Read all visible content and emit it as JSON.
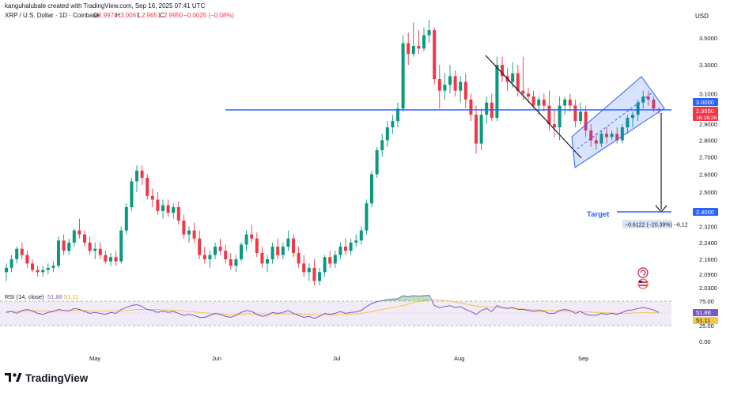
{
  "header": {
    "author_line": "kanguhalubale created with TradingView.com, Sep 16, 2025 07:41 UTC",
    "symbol": "XRP / U.S. Dollar · 1D · Coinbase",
    "o_label": "O",
    "o_value": "2.9974",
    "h_label": "H",
    "h_value": "3.0067",
    "l_label": "L",
    "l_value": "2.9651",
    "c_label": "C",
    "c_value": "2.9950",
    "change": "−0.0025 (−0.08%)"
  },
  "currency": "USD",
  "price_axis": {
    "ticks": [
      "3.5000",
      "3.3000",
      "3.1000",
      "2.9000",
      "2.8000",
      "2.7000",
      "2.6000",
      "2.5000",
      "2.3200",
      "2.2400",
      "2.1600",
      "2.0900",
      "2.0300"
    ],
    "labels": {
      "level": "3.0000",
      "last": "2.9950",
      "countdown": "16:18:26",
      "target": "2.4000"
    }
  },
  "rsi_axis": {
    "ticks": [
      "75.00",
      "25.00",
      "0.00"
    ],
    "rsi_value": "51.88",
    "ma_value": "51.11"
  },
  "rsi_legend": {
    "name": "RSI (14, close)",
    "v1": "51.88",
    "v2": "51.11"
  },
  "time_axis": [
    "May",
    "Jun",
    "Jul",
    "Aug",
    "Sep"
  ],
  "annotations": {
    "target_label": "Target",
    "measure_label": "−0.6122 (−20.39%) −6,12"
  },
  "brand": "TradingView",
  "colors": {
    "up": "#089981",
    "down": "#f23645",
    "level": "#2962ff",
    "channel": "#2962ff",
    "rsi": "#7e57c2",
    "rsi_ma": "#f7c548",
    "rsi_band": "#ede7f6"
  },
  "chart_data": {
    "type": "candlestick",
    "title": "XRP / U.S. Dollar · 1D · Coinbase",
    "ylabel": "USD",
    "ylim": [
      2.03,
      3.6
    ],
    "candles": [
      {
        "o": 2.1,
        "h": 2.14,
        "l": 2.06,
        "c": 2.12
      },
      {
        "o": 2.12,
        "h": 2.18,
        "l": 2.1,
        "c": 2.16
      },
      {
        "o": 2.16,
        "h": 2.22,
        "l": 2.14,
        "c": 2.21
      },
      {
        "o": 2.21,
        "h": 2.24,
        "l": 2.16,
        "c": 2.18
      },
      {
        "o": 2.18,
        "h": 2.2,
        "l": 2.12,
        "c": 2.14
      },
      {
        "o": 2.14,
        "h": 2.16,
        "l": 2.1,
        "c": 2.11
      },
      {
        "o": 2.11,
        "h": 2.13,
        "l": 2.08,
        "c": 2.1
      },
      {
        "o": 2.1,
        "h": 2.13,
        "l": 2.08,
        "c": 2.11
      },
      {
        "o": 2.11,
        "h": 2.14,
        "l": 2.09,
        "c": 2.12
      },
      {
        "o": 2.12,
        "h": 2.15,
        "l": 2.1,
        "c": 2.13
      },
      {
        "o": 2.13,
        "h": 2.27,
        "l": 2.12,
        "c": 2.25
      },
      {
        "o": 2.25,
        "h": 2.28,
        "l": 2.18,
        "c": 2.2
      },
      {
        "o": 2.2,
        "h": 2.26,
        "l": 2.18,
        "c": 2.24
      },
      {
        "o": 2.24,
        "h": 2.31,
        "l": 2.22,
        "c": 2.3
      },
      {
        "o": 2.3,
        "h": 2.36,
        "l": 2.26,
        "c": 2.28
      },
      {
        "o": 2.28,
        "h": 2.3,
        "l": 2.22,
        "c": 2.24
      },
      {
        "o": 2.24,
        "h": 2.27,
        "l": 2.18,
        "c": 2.2
      },
      {
        "o": 2.2,
        "h": 2.24,
        "l": 2.16,
        "c": 2.21
      },
      {
        "o": 2.21,
        "h": 2.24,
        "l": 2.16,
        "c": 2.18
      },
      {
        "o": 2.18,
        "h": 2.2,
        "l": 2.14,
        "c": 2.15
      },
      {
        "o": 2.15,
        "h": 2.19,
        "l": 2.13,
        "c": 2.17
      },
      {
        "o": 2.17,
        "h": 2.2,
        "l": 2.13,
        "c": 2.15
      },
      {
        "o": 2.15,
        "h": 2.32,
        "l": 2.14,
        "c": 2.3
      },
      {
        "o": 2.3,
        "h": 2.44,
        "l": 2.28,
        "c": 2.42
      },
      {
        "o": 2.42,
        "h": 2.58,
        "l": 2.4,
        "c": 2.56
      },
      {
        "o": 2.56,
        "h": 2.65,
        "l": 2.5,
        "c": 2.62
      },
      {
        "o": 2.62,
        "h": 2.65,
        "l": 2.54,
        "c": 2.58
      },
      {
        "o": 2.58,
        "h": 2.6,
        "l": 2.46,
        "c": 2.48
      },
      {
        "o": 2.48,
        "h": 2.52,
        "l": 2.42,
        "c": 2.46
      },
      {
        "o": 2.46,
        "h": 2.5,
        "l": 2.38,
        "c": 2.4
      },
      {
        "o": 2.4,
        "h": 2.46,
        "l": 2.36,
        "c": 2.43
      },
      {
        "o": 2.43,
        "h": 2.46,
        "l": 2.37,
        "c": 2.39
      },
      {
        "o": 2.39,
        "h": 2.44,
        "l": 2.36,
        "c": 2.42
      },
      {
        "o": 2.42,
        "h": 2.45,
        "l": 2.33,
        "c": 2.35
      },
      {
        "o": 2.35,
        "h": 2.38,
        "l": 2.26,
        "c": 2.28
      },
      {
        "o": 2.28,
        "h": 2.32,
        "l": 2.24,
        "c": 2.3
      },
      {
        "o": 2.3,
        "h": 2.34,
        "l": 2.24,
        "c": 2.26
      },
      {
        "o": 2.26,
        "h": 2.3,
        "l": 2.16,
        "c": 2.18
      },
      {
        "o": 2.18,
        "h": 2.22,
        "l": 2.14,
        "c": 2.16
      },
      {
        "o": 2.16,
        "h": 2.2,
        "l": 2.12,
        "c": 2.18
      },
      {
        "o": 2.18,
        "h": 2.24,
        "l": 2.16,
        "c": 2.22
      },
      {
        "o": 2.22,
        "h": 2.26,
        "l": 2.18,
        "c": 2.2
      },
      {
        "o": 2.2,
        "h": 2.23,
        "l": 2.14,
        "c": 2.16
      },
      {
        "o": 2.16,
        "h": 2.19,
        "l": 2.11,
        "c": 2.13
      },
      {
        "o": 2.13,
        "h": 2.18,
        "l": 2.1,
        "c": 2.16
      },
      {
        "o": 2.16,
        "h": 2.24,
        "l": 2.15,
        "c": 2.23
      },
      {
        "o": 2.23,
        "h": 2.3,
        "l": 2.2,
        "c": 2.28
      },
      {
        "o": 2.28,
        "h": 2.33,
        "l": 2.24,
        "c": 2.26
      },
      {
        "o": 2.26,
        "h": 2.29,
        "l": 2.17,
        "c": 2.19
      },
      {
        "o": 2.19,
        "h": 2.22,
        "l": 2.12,
        "c": 2.14
      },
      {
        "o": 2.14,
        "h": 2.18,
        "l": 2.1,
        "c": 2.16
      },
      {
        "o": 2.16,
        "h": 2.24,
        "l": 2.14,
        "c": 2.22
      },
      {
        "o": 2.22,
        "h": 2.26,
        "l": 2.16,
        "c": 2.18
      },
      {
        "o": 2.18,
        "h": 2.24,
        "l": 2.16,
        "c": 2.22
      },
      {
        "o": 2.22,
        "h": 2.3,
        "l": 2.2,
        "c": 2.26
      },
      {
        "o": 2.26,
        "h": 2.28,
        "l": 2.17,
        "c": 2.19
      },
      {
        "o": 2.19,
        "h": 2.22,
        "l": 2.12,
        "c": 2.14
      },
      {
        "o": 2.14,
        "h": 2.18,
        "l": 2.08,
        "c": 2.1
      },
      {
        "o": 2.1,
        "h": 2.14,
        "l": 2.06,
        "c": 2.12
      },
      {
        "o": 2.12,
        "h": 2.16,
        "l": 2.04,
        "c": 2.06
      },
      {
        "o": 2.06,
        "h": 2.12,
        "l": 2.04,
        "c": 2.1
      },
      {
        "o": 2.1,
        "h": 2.18,
        "l": 2.08,
        "c": 2.17
      },
      {
        "o": 2.17,
        "h": 2.2,
        "l": 2.12,
        "c": 2.14
      },
      {
        "o": 2.14,
        "h": 2.2,
        "l": 2.12,
        "c": 2.18
      },
      {
        "o": 2.18,
        "h": 2.24,
        "l": 2.16,
        "c": 2.22
      },
      {
        "o": 2.22,
        "h": 2.26,
        "l": 2.18,
        "c": 2.2
      },
      {
        "o": 2.2,
        "h": 2.26,
        "l": 2.18,
        "c": 2.24
      },
      {
        "o": 2.24,
        "h": 2.28,
        "l": 2.22,
        "c": 2.25
      },
      {
        "o": 2.25,
        "h": 2.32,
        "l": 2.23,
        "c": 2.3
      },
      {
        "o": 2.3,
        "h": 2.46,
        "l": 2.28,
        "c": 2.44
      },
      {
        "o": 2.44,
        "h": 2.62,
        "l": 2.42,
        "c": 2.6
      },
      {
        "o": 2.6,
        "h": 2.76,
        "l": 2.58,
        "c": 2.74
      },
      {
        "o": 2.74,
        "h": 2.84,
        "l": 2.7,
        "c": 2.8
      },
      {
        "o": 2.8,
        "h": 2.92,
        "l": 2.76,
        "c": 2.88
      },
      {
        "o": 2.88,
        "h": 2.96,
        "l": 2.84,
        "c": 2.92
      },
      {
        "o": 2.92,
        "h": 3.04,
        "l": 2.88,
        "c": 3.0
      },
      {
        "o": 3.0,
        "h": 3.52,
        "l": 2.98,
        "c": 3.46
      },
      {
        "o": 3.46,
        "h": 3.54,
        "l": 3.3,
        "c": 3.38
      },
      {
        "o": 3.38,
        "h": 3.62,
        "l": 3.36,
        "c": 3.44
      },
      {
        "o": 3.44,
        "h": 3.56,
        "l": 3.38,
        "c": 3.42
      },
      {
        "o": 3.42,
        "h": 3.58,
        "l": 3.4,
        "c": 3.52
      },
      {
        "o": 3.52,
        "h": 3.64,
        "l": 3.46,
        "c": 3.56
      },
      {
        "o": 3.56,
        "h": 3.58,
        "l": 3.16,
        "c": 3.2
      },
      {
        "o": 3.2,
        "h": 3.3,
        "l": 3.0,
        "c": 3.12
      },
      {
        "o": 3.12,
        "h": 3.24,
        "l": 3.06,
        "c": 3.16
      },
      {
        "o": 3.16,
        "h": 3.3,
        "l": 3.1,
        "c": 3.22
      },
      {
        "o": 3.22,
        "h": 3.26,
        "l": 3.08,
        "c": 3.12
      },
      {
        "o": 3.12,
        "h": 3.22,
        "l": 3.04,
        "c": 3.18
      },
      {
        "o": 3.18,
        "h": 3.24,
        "l": 3.0,
        "c": 3.06
      },
      {
        "o": 3.06,
        "h": 3.1,
        "l": 2.92,
        "c": 2.96
      },
      {
        "o": 2.96,
        "h": 3.02,
        "l": 2.72,
        "c": 2.78
      },
      {
        "o": 2.78,
        "h": 3.0,
        "l": 2.74,
        "c": 2.96
      },
      {
        "o": 2.96,
        "h": 3.08,
        "l": 2.9,
        "c": 3.04
      },
      {
        "o": 3.04,
        "h": 3.1,
        "l": 2.92,
        "c": 2.94
      },
      {
        "o": 2.94,
        "h": 3.36,
        "l": 2.92,
        "c": 3.3
      },
      {
        "o": 3.3,
        "h": 3.36,
        "l": 3.18,
        "c": 3.22
      },
      {
        "o": 3.22,
        "h": 3.28,
        "l": 3.12,
        "c": 3.18
      },
      {
        "o": 3.18,
        "h": 3.32,
        "l": 3.14,
        "c": 3.24
      },
      {
        "o": 3.24,
        "h": 3.3,
        "l": 3.08,
        "c": 3.12
      },
      {
        "o": 3.12,
        "h": 3.36,
        "l": 3.06,
        "c": 3.1
      },
      {
        "o": 3.1,
        "h": 3.14,
        "l": 3.04,
        "c": 3.08
      },
      {
        "o": 3.08,
        "h": 3.12,
        "l": 3.0,
        "c": 3.02
      },
      {
        "o": 3.02,
        "h": 3.08,
        "l": 2.96,
        "c": 3.06
      },
      {
        "o": 3.06,
        "h": 3.1,
        "l": 2.98,
        "c": 3.02
      },
      {
        "o": 3.02,
        "h": 3.12,
        "l": 2.86,
        "c": 2.9
      },
      {
        "o": 2.9,
        "h": 3.0,
        "l": 2.82,
        "c": 2.88
      },
      {
        "o": 2.88,
        "h": 3.08,
        "l": 2.8,
        "c": 3.02
      },
      {
        "o": 3.02,
        "h": 3.08,
        "l": 2.96,
        "c": 3.06
      },
      {
        "o": 3.06,
        "h": 3.1,
        "l": 2.98,
        "c": 3.02
      },
      {
        "o": 3.02,
        "h": 3.06,
        "l": 2.88,
        "c": 2.92
      },
      {
        "o": 2.92,
        "h": 3.04,
        "l": 2.9,
        "c": 2.98
      },
      {
        "o": 2.98,
        "h": 3.02,
        "l": 2.82,
        "c": 2.86
      },
      {
        "o": 2.86,
        "h": 2.9,
        "l": 2.76,
        "c": 2.8
      },
      {
        "o": 2.8,
        "h": 2.84,
        "l": 2.74,
        "c": 2.78
      },
      {
        "o": 2.78,
        "h": 2.86,
        "l": 2.76,
        "c": 2.84
      },
      {
        "o": 2.84,
        "h": 2.88,
        "l": 2.78,
        "c": 2.82
      },
      {
        "o": 2.82,
        "h": 2.86,
        "l": 2.8,
        "c": 2.84
      },
      {
        "o": 2.84,
        "h": 2.88,
        "l": 2.78,
        "c": 2.8
      },
      {
        "o": 2.8,
        "h": 2.9,
        "l": 2.78,
        "c": 2.88
      },
      {
        "o": 2.88,
        "h": 2.96,
        "l": 2.84,
        "c": 2.94
      },
      {
        "o": 2.94,
        "h": 2.98,
        "l": 2.88,
        "c": 2.96
      },
      {
        "o": 2.96,
        "h": 3.06,
        "l": 2.92,
        "c": 3.04
      },
      {
        "o": 3.04,
        "h": 3.12,
        "l": 3.0,
        "c": 3.08
      },
      {
        "o": 3.08,
        "h": 3.12,
        "l": 3.02,
        "c": 3.06
      },
      {
        "o": 3.06,
        "h": 3.08,
        "l": 2.98,
        "c": 3.0
      },
      {
        "o": 2.9974,
        "h": 3.0067,
        "l": 2.9651,
        "c": 2.995
      }
    ],
    "horizontal_level": 3.0,
    "target": 2.4,
    "measure": "−0.6122 (−20.39%)",
    "time_labels": [
      "May",
      "Jun",
      "Jul",
      "Aug",
      "Sep"
    ],
    "rsi": {
      "name": "RSI (14, close)",
      "range": [
        0,
        100
      ],
      "bands": [
        25,
        75
      ],
      "last_rsi": 51.88,
      "last_ma": 51.11,
      "values": [
        52,
        54,
        50,
        56,
        58,
        55,
        50,
        48,
        52,
        54,
        58,
        56,
        55,
        60,
        58,
        54,
        50,
        52,
        50,
        48,
        52,
        50,
        58,
        62,
        66,
        68,
        64,
        58,
        56,
        52,
        55,
        52,
        54,
        50,
        46,
        48,
        46,
        42,
        42,
        46,
        50,
        48,
        44,
        42,
        46,
        52,
        56,
        54,
        48,
        44,
        46,
        52,
        50,
        52,
        56,
        50,
        46,
        42,
        44,
        40,
        44,
        50,
        48,
        50,
        54,
        50,
        52,
        53,
        56,
        64,
        70,
        74,
        76,
        78,
        79,
        80,
        86,
        84,
        86,
        85,
        86,
        87,
        66,
        62,
        64,
        66,
        62,
        64,
        58,
        54,
        48,
        56,
        60,
        54,
        66,
        62,
        60,
        62,
        58,
        58,
        56,
        54,
        56,
        54,
        50,
        50,
        56,
        58,
        56,
        50,
        54,
        48,
        46,
        46,
        50,
        48,
        50,
        48,
        52,
        56,
        57,
        60,
        62,
        60,
        57,
        52
      ],
      "ma": [
        54,
        54,
        54,
        54,
        55,
        55,
        55,
        55,
        55,
        55,
        55,
        56,
        56,
        56,
        56,
        56,
        55,
        55,
        55,
        55,
        55,
        55,
        55,
        56,
        57,
        58,
        58,
        58,
        58,
        58,
        57,
        57,
        56,
        56,
        55,
        54,
        53,
        52,
        51,
        50,
        49,
        49,
        48,
        48,
        48,
        48,
        49,
        49,
        49,
        49,
        49,
        49,
        49,
        49,
        49,
        49,
        49,
        48,
        48,
        47,
        47,
        47,
        47,
        47,
        48,
        48,
        49,
        49,
        50,
        52,
        54,
        56,
        58,
        60,
        62,
        64,
        66,
        69,
        72,
        74,
        76,
        78,
        78,
        77,
        76,
        75,
        73,
        71,
        69,
        67,
        65,
        64,
        63,
        62,
        62,
        61,
        61,
        60,
        60,
        59,
        58,
        57,
        57,
        56,
        56,
        55,
        55,
        55,
        54,
        54,
        54,
        53,
        53,
        52,
        52,
        51,
        51,
        50,
        50,
        50,
        51,
        51,
        52,
        52,
        51,
        51
      ]
    }
  }
}
